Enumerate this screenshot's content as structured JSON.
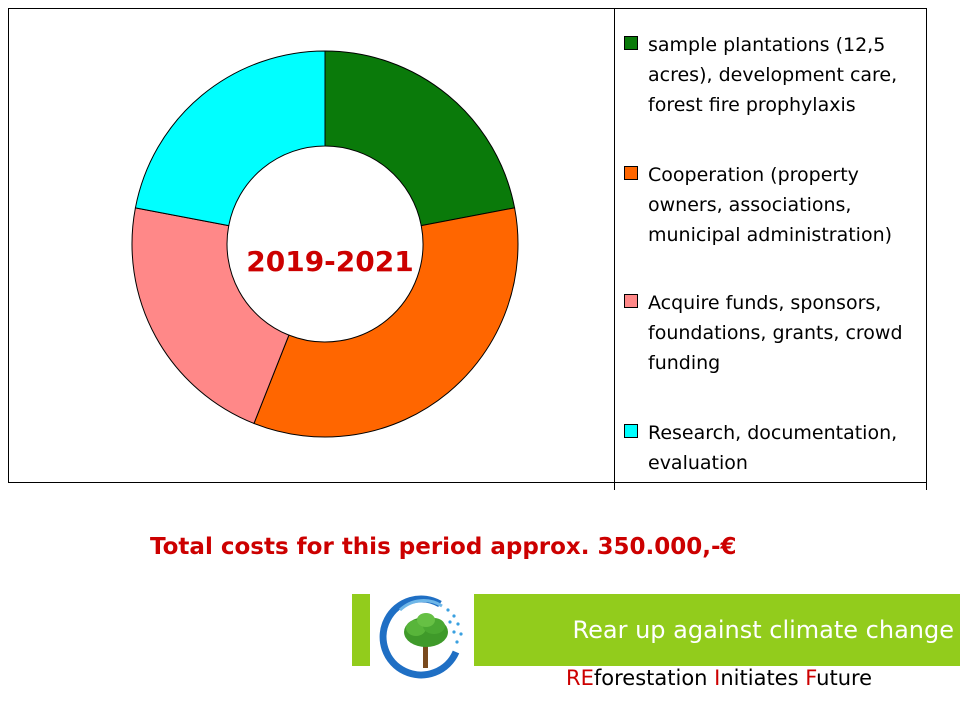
{
  "chart_data": {
    "type": "pie",
    "style": "donut",
    "center_label": "2019-2021",
    "slices": [
      {
        "label": "sample plantations (12,5 acres), development care, forest fire prophylaxis",
        "value": 22,
        "color": "#0a7a0a"
      },
      {
        "label": "Cooperation (property owners, associations, municipal administration)",
        "value": 34,
        "color": "#ff6600"
      },
      {
        "label": "Acquire funds, sponsors, foundations, grants, crowd funding",
        "value": 22,
        "color": "#ff8888"
      },
      {
        "label": "Research, documentation, evaluation",
        "value": 22,
        "color": "#00ffff"
      }
    ],
    "legend": {
      "items": [
        {
          "lines": [
            "sample plantations (12,5",
            "acres), development care,",
            "forest fire prophylaxis"
          ],
          "color": "#0a7a0a"
        },
        {
          "lines": [
            "Cooperation (property",
            "owners, associations,",
            "municipal administration)"
          ],
          "color": "#ff6600"
        },
        {
          "lines": [
            "Acquire funds, sponsors,",
            "foundations, grants, crowd",
            "funding"
          ],
          "color": "#ff8888"
        },
        {
          "lines": [
            "Research, documentation,",
            "evaluation"
          ],
          "color": "#00ffff"
        }
      ]
    }
  },
  "footer": {
    "total_costs": "Total costs for this period approx. 350.000,-€",
    "slogan": "Rear up against climate change",
    "tagline_parts": [
      {
        "text": "RE",
        "highlight": true
      },
      {
        "text": "forestation ",
        "highlight": false
      },
      {
        "text": "I",
        "highlight": true
      },
      {
        "text": "nitiates ",
        "highlight": false
      },
      {
        "text": "F",
        "highlight": true
      },
      {
        "text": "uture",
        "highlight": false
      }
    ]
  },
  "colors": {
    "accent_red": "#cc0000",
    "brand_green": "#92cc1c"
  }
}
